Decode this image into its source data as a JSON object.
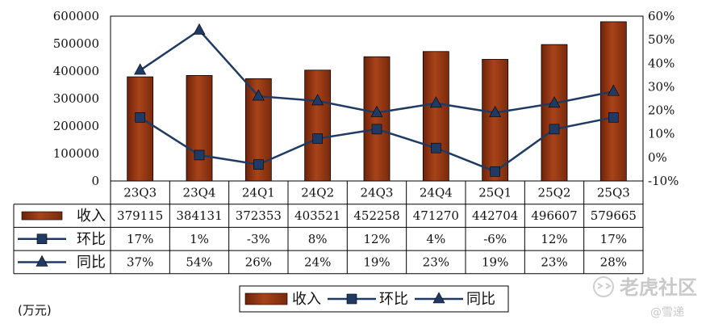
{
  "chart_data": {
    "type": "bar",
    "categories": [
      "23Q3",
      "23Q4",
      "24Q1",
      "24Q2",
      "24Q3",
      "24Q4",
      "25Q1",
      "25Q2",
      "25Q3"
    ],
    "series": [
      {
        "name": "收入",
        "kind": "bar",
        "axis": "left",
        "values": [
          379115,
          384131,
          372353,
          403521,
          452258,
          471270,
          442704,
          496607,
          579665
        ],
        "display": [
          "379115",
          "384131",
          "372353",
          "403521",
          "452258",
          "471270",
          "442704",
          "496607",
          "579665"
        ],
        "color": "#9e3c12"
      },
      {
        "name": "环比",
        "kind": "line",
        "marker": "square",
        "axis": "right",
        "values": [
          17,
          1,
          -3,
          8,
          12,
          4,
          -6,
          12,
          17
        ],
        "display": [
          "17%",
          "1%",
          "-3%",
          "8%",
          "12%",
          "4%",
          "-6%",
          "12%",
          "17%"
        ],
        "color": "#1f3b63"
      },
      {
        "name": "同比",
        "kind": "line",
        "marker": "triangle",
        "axis": "right",
        "values": [
          37,
          54,
          26,
          24,
          19,
          23,
          19,
          23,
          28
        ],
        "display": [
          "37%",
          "54%",
          "26%",
          "24%",
          "19%",
          "23%",
          "19%",
          "23%",
          "28%"
        ],
        "color": "#1f3b63"
      }
    ],
    "ylim_left": [
      0,
      600000
    ],
    "yticks_left": [
      "0",
      "100000",
      "200000",
      "300000",
      "400000",
      "500000",
      "600000"
    ],
    "ylim_right": [
      -10,
      60
    ],
    "yticks_right": [
      "-10%",
      "0%",
      "10%",
      "20%",
      "30%",
      "40%",
      "50%",
      "60%"
    ],
    "unit": "(万元)",
    "legend_position": "bottom-center",
    "grid": false
  },
  "watermark": {
    "brand": "老虎社区",
    "sub": "@雪递"
  }
}
